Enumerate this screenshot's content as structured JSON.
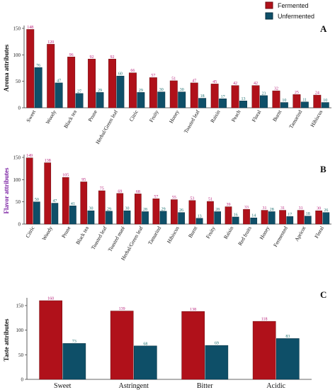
{
  "legend": {
    "fermented_label": "Fermented",
    "unfermented_label": "Unfermented"
  },
  "colors": {
    "fermented": "#b0111a",
    "fermented_stroke": "#6e0b10",
    "unfermented": "#0e4f68",
    "unfermented_stroke": "#082f3f",
    "aroma_label": "#111111",
    "flavor_label": "#7a1fa2",
    "taste_label": "#111111",
    "fermented_value": "#b8207a",
    "unfermented_value": "#1a6e6e"
  },
  "chart_data": [
    {
      "panel": "A",
      "type": "bar",
      "ylabel": "Aroma attributes",
      "ylim": [
        0,
        150
      ],
      "yticks": [
        0,
        50,
        100,
        150
      ],
      "categories": [
        "Sweet",
        "Woody",
        "Black tea",
        "Prune",
        "Herbal/Green leaf",
        "Citric",
        "Fruity",
        "Honey",
        "Toasted leaf",
        "Raisin",
        "Peach",
        "Floral",
        "Burnt",
        "Tamarind",
        "Hibiscus"
      ],
      "series": [
        {
          "name": "Fermented",
          "values": [
            148,
            120,
            96,
            92,
            92,
            66,
            57,
            51,
            47,
            45,
            42,
            42,
            32,
            25,
            24
          ]
        },
        {
          "name": "Unfermented",
          "values": [
            76,
            47,
            27,
            29,
            60,
            29,
            30,
            30,
            18,
            17,
            13,
            23,
            10,
            11,
            10
          ]
        }
      ]
    },
    {
      "panel": "B",
      "type": "bar",
      "ylabel": "Flavor attributes",
      "ylim": [
        0,
        150
      ],
      "yticks": [
        0,
        50,
        100,
        150
      ],
      "categories": [
        "Citric",
        "Woody",
        "Prune",
        "Black tea",
        "Toasted leaf",
        "Toasted maté",
        "Herbal/Green leaf",
        "Tamarind",
        "Hibiscus",
        "Burnt",
        "Fruity",
        "Raisin",
        "Red fruits",
        "Honey",
        "Fermented",
        "Apricot",
        "Floral"
      ],
      "series": [
        {
          "name": "Fermented",
          "values": [
            149,
            138,
            105,
            95,
            75,
            69,
            68,
            57,
            55,
            53,
            51,
            39,
            33,
            31,
            31,
            31,
            30
          ]
        },
        {
          "name": "Unfermented",
          "values": [
            50,
            47,
            41,
            30,
            29,
            30,
            28,
            29,
            26,
            13,
            28,
            16,
            14,
            28,
            17,
            18,
            26
          ]
        }
      ]
    },
    {
      "panel": "C",
      "type": "bar",
      "ylabel": "Taste attributes",
      "ylim": [
        0,
        160
      ],
      "yticks": [
        0,
        50,
        100,
        150
      ],
      "categories": [
        "Sweet",
        "Astringent",
        "Bitter",
        "Acidic"
      ],
      "series": [
        {
          "name": "Fermented",
          "values": [
            160,
            139,
            138,
            118
          ]
        },
        {
          "name": "Unfermented",
          "values": [
            73,
            68,
            69,
            83
          ]
        }
      ]
    }
  ]
}
